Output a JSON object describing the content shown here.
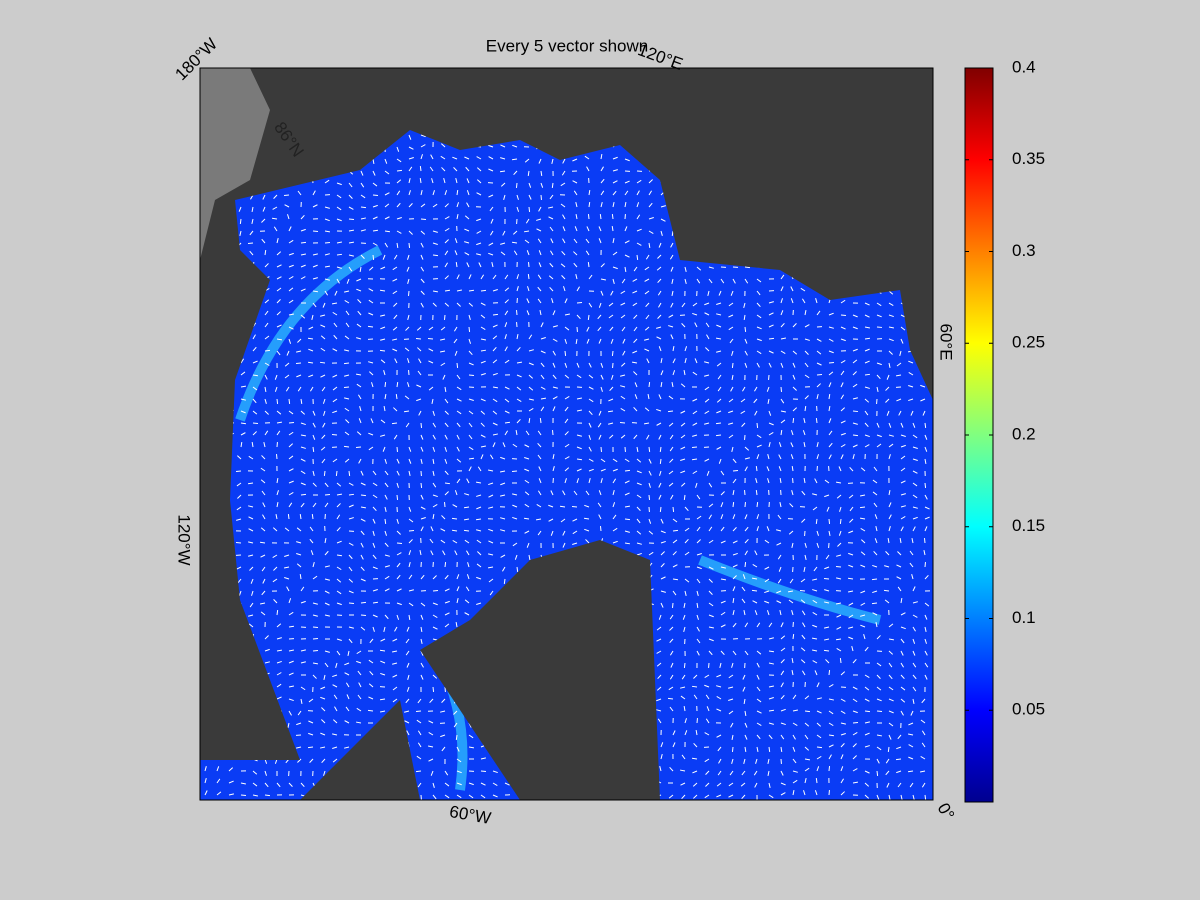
{
  "title": "Every 5 vector shown",
  "map": {
    "labels": [
      "180°W",
      "120°E",
      "60°E",
      "0°",
      "60°W",
      "120°W",
      "86°N"
    ]
  },
  "colorbar": {
    "lim": [
      0,
      0.4
    ],
    "ticks": [
      0.05,
      0.1,
      0.15,
      0.2,
      0.25,
      0.3,
      0.35,
      0.4
    ],
    "colors": [
      "#00008f",
      "#0000ff",
      "#0080ff",
      "#00ffff",
      "#80ff80",
      "#ffff00",
      "#ff8000",
      "#ff0000",
      "#800000"
    ]
  }
}
